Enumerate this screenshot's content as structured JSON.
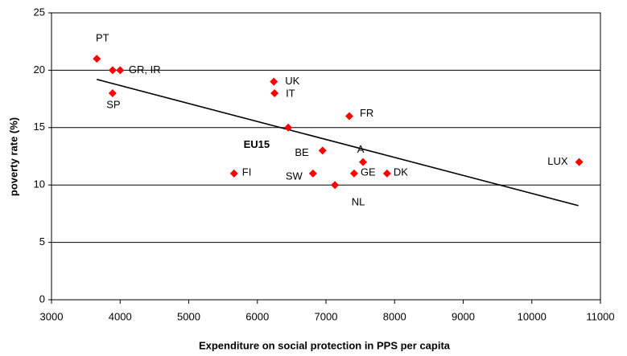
{
  "chart_data": {
    "type": "scatter",
    "x_label": "Expenditure on social protection in PPS per capita",
    "y_label": "poverty rate (%)",
    "xlim": [
      3000,
      11000
    ],
    "xticks": [
      3000,
      4000,
      5000,
      6000,
      7000,
      8000,
      9000,
      10000,
      11000
    ],
    "ylim": [
      0,
      25
    ],
    "yticks": [
      0,
      5,
      10,
      15,
      20,
      25
    ],
    "grid": true,
    "series": [
      {
        "color": "#ff0000",
        "x": [
          3660,
          3890,
          4000,
          3890,
          6240,
          6250,
          6450,
          7340,
          6950,
          7540,
          6810,
          7410,
          7130,
          7890,
          5660,
          10690
        ],
        "values": [
          21,
          20,
          20,
          18,
          19,
          18,
          15,
          16,
          13,
          12,
          11,
          11,
          10,
          11,
          11,
          12
        ],
        "labels": [
          "PT",
          "GR, IR",
          null,
          "SP",
          "UK",
          "IT",
          "EU15",
          "FR",
          "BE",
          "A",
          "SW",
          "GE",
          "NL",
          "DK",
          "FI",
          "LUX"
        ]
      }
    ],
    "trendline": {
      "color": "#000000",
      "x": [
        3660,
        10680
      ],
      "values": [
        19.2,
        8.2
      ]
    }
  }
}
